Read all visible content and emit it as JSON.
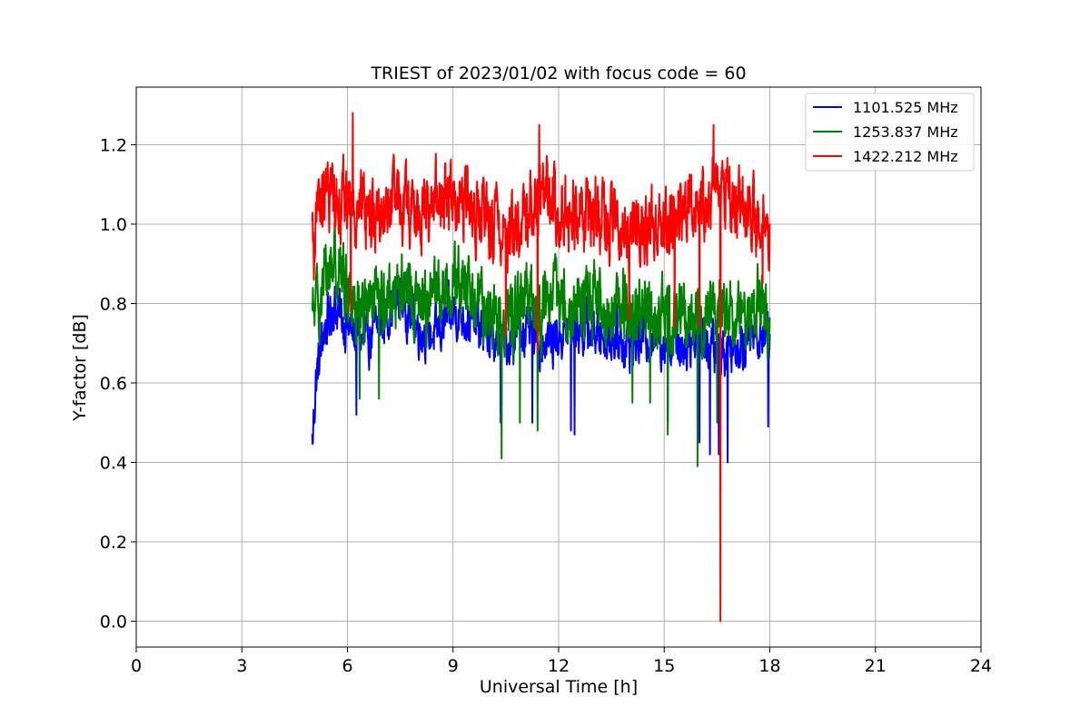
{
  "chart_data": {
    "type": "line",
    "title": "TRIEST of 2023/01/02 with focus code = 60",
    "xlabel": "Universal Time [h]",
    "ylabel": "Y-factor [dB]",
    "xlim": [
      0,
      24
    ],
    "ylim": [
      -0.065,
      1.345
    ],
    "xticks": [
      0,
      3,
      6,
      9,
      12,
      15,
      18,
      21,
      24
    ],
    "xtick_labels": [
      "0",
      "3",
      "6",
      "9",
      "12",
      "15",
      "18",
      "21",
      "24"
    ],
    "yticks": [
      0.0,
      0.2,
      0.4,
      0.6,
      0.8,
      1.0,
      1.2
    ],
    "ytick_labels": [
      "0.0",
      "0.2",
      "0.4",
      "0.6",
      "0.8",
      "1.0",
      "1.2"
    ],
    "grid": true,
    "legend_position": "top-right",
    "series": [
      {
        "name": "1101.525 MHz",
        "color": "#0000ff",
        "x_range": [
          5.0,
          18.0
        ],
        "samples": 1400,
        "keypoints": [
          [
            5.0,
            0.45
          ],
          [
            5.1,
            0.6
          ],
          [
            5.3,
            0.72
          ],
          [
            5.6,
            0.8
          ],
          [
            6.0,
            0.74
          ],
          [
            6.5,
            0.7
          ],
          [
            7.0,
            0.76
          ],
          [
            7.5,
            0.82
          ],
          [
            8.0,
            0.74
          ],
          [
            8.5,
            0.72
          ],
          [
            9.0,
            0.78
          ],
          [
            9.5,
            0.76
          ],
          [
            10.0,
            0.72
          ],
          [
            10.5,
            0.7
          ],
          [
            11.0,
            0.74
          ],
          [
            11.5,
            0.7
          ],
          [
            12.0,
            0.72
          ],
          [
            12.5,
            0.74
          ],
          [
            13.0,
            0.73
          ],
          [
            13.5,
            0.72
          ],
          [
            14.0,
            0.7
          ],
          [
            14.5,
            0.72
          ],
          [
            15.0,
            0.71
          ],
          [
            15.5,
            0.7
          ],
          [
            16.0,
            0.72
          ],
          [
            16.5,
            0.68
          ],
          [
            17.0,
            0.7
          ],
          [
            17.5,
            0.72
          ],
          [
            18.0,
            0.73
          ]
        ],
        "noise": 0.05,
        "min_clip": 0.4,
        "dips": [
          [
            5.02,
            0.45
          ],
          [
            6.25,
            0.52
          ],
          [
            10.35,
            0.5
          ],
          [
            11.25,
            0.5
          ],
          [
            12.35,
            0.48
          ],
          [
            12.45,
            0.47
          ],
          [
            15.1,
            0.5
          ],
          [
            16.0,
            0.45
          ],
          [
            16.3,
            0.42
          ],
          [
            16.55,
            0.42
          ],
          [
            16.8,
            0.4
          ],
          [
            17.95,
            0.49
          ]
        ]
      },
      {
        "name": "1253.837 MHz",
        "color": "#008000",
        "x_range": [
          5.0,
          18.0
        ],
        "samples": 1400,
        "keypoints": [
          [
            5.0,
            0.76
          ],
          [
            5.3,
            0.84
          ],
          [
            5.6,
            0.92
          ],
          [
            6.0,
            0.84
          ],
          [
            6.5,
            0.78
          ],
          [
            7.0,
            0.8
          ],
          [
            7.5,
            0.84
          ],
          [
            8.0,
            0.8
          ],
          [
            8.5,
            0.82
          ],
          [
            9.0,
            0.86
          ],
          [
            9.5,
            0.82
          ],
          [
            10.0,
            0.78
          ],
          [
            10.5,
            0.76
          ],
          [
            11.0,
            0.8
          ],
          [
            11.5,
            0.78
          ],
          [
            12.0,
            0.82
          ],
          [
            12.5,
            0.8
          ],
          [
            13.0,
            0.8
          ],
          [
            13.5,
            0.78
          ],
          [
            14.0,
            0.8
          ],
          [
            14.5,
            0.76
          ],
          [
            15.0,
            0.76
          ],
          [
            15.5,
            0.78
          ],
          [
            16.0,
            0.76
          ],
          [
            16.5,
            0.8
          ],
          [
            17.0,
            0.76
          ],
          [
            17.5,
            0.8
          ],
          [
            18.0,
            0.74
          ]
        ],
        "noise": 0.07,
        "min_clip": 0.39,
        "dips": [
          [
            6.35,
            0.56
          ],
          [
            6.9,
            0.56
          ],
          [
            10.38,
            0.41
          ],
          [
            10.9,
            0.5
          ],
          [
            11.4,
            0.48
          ],
          [
            14.1,
            0.55
          ],
          [
            14.6,
            0.55
          ],
          [
            15.1,
            0.47
          ],
          [
            15.95,
            0.39
          ],
          [
            16.5,
            0.5
          ]
        ]
      },
      {
        "name": "1422.212 MHz",
        "color": "#ff0000",
        "x_range": [
          5.0,
          18.0
        ],
        "samples": 1400,
        "keypoints": [
          [
            5.0,
            0.96
          ],
          [
            5.2,
            1.04
          ],
          [
            5.5,
            1.08
          ],
          [
            6.0,
            1.06
          ],
          [
            6.5,
            1.04
          ],
          [
            7.0,
            1.02
          ],
          [
            7.5,
            1.06
          ],
          [
            8.0,
            1.02
          ],
          [
            8.5,
            1.06
          ],
          [
            9.0,
            1.08
          ],
          [
            9.5,
            1.04
          ],
          [
            10.0,
            1.0
          ],
          [
            10.5,
            0.98
          ],
          [
            11.0,
            1.0
          ],
          [
            11.5,
            1.1
          ],
          [
            12.0,
            1.04
          ],
          [
            12.5,
            1.02
          ],
          [
            13.0,
            1.04
          ],
          [
            13.5,
            1.0
          ],
          [
            14.0,
            0.98
          ],
          [
            14.5,
            1.0
          ],
          [
            15.0,
            1.02
          ],
          [
            15.5,
            1.04
          ],
          [
            16.0,
            1.06
          ],
          [
            16.5,
            1.1
          ],
          [
            17.0,
            1.06
          ],
          [
            17.5,
            1.02
          ],
          [
            18.0,
            1.0
          ]
        ],
        "noise": 0.07,
        "min_clip": 0.6,
        "dips": [
          [
            5.05,
            0.86
          ],
          [
            6.1,
            0.78
          ],
          [
            10.5,
            0.72
          ],
          [
            11.4,
            0.68
          ],
          [
            14.0,
            0.76
          ],
          [
            15.3,
            0.74
          ],
          [
            16.0,
            0.74
          ],
          [
            16.6,
            0.0
          ],
          [
            17.8,
            0.85
          ]
        ],
        "spikes": [
          [
            6.15,
            1.28
          ],
          [
            11.45,
            1.25
          ],
          [
            16.4,
            1.25
          ]
        ]
      }
    ]
  }
}
